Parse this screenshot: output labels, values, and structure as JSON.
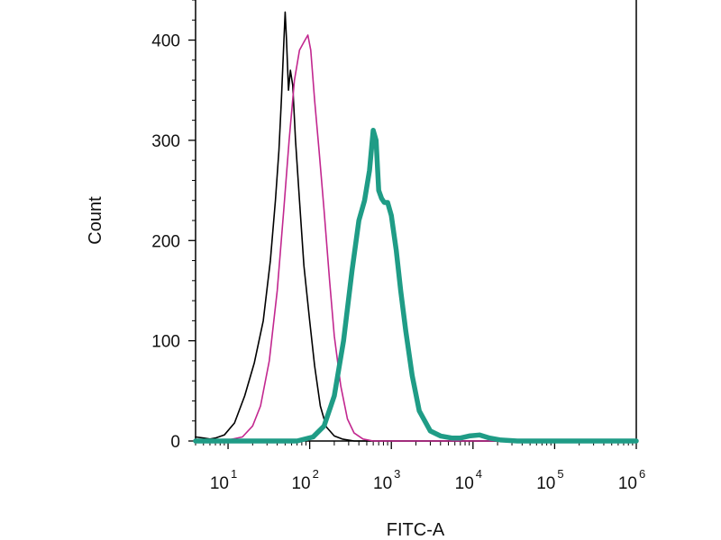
{
  "chart_data": {
    "type": "line",
    "xlabel": "FITC-A",
    "ylabel": "Count",
    "x_scale": "log",
    "xlim": [
      4,
      1000000
    ],
    "ylim": [
      0,
      440
    ],
    "x_ticks": [
      {
        "value": 10,
        "base": "10",
        "exp": "1"
      },
      {
        "value": 100,
        "base": "10",
        "exp": "2"
      },
      {
        "value": 1000,
        "base": "10",
        "exp": "3"
      },
      {
        "value": 10000,
        "base": "10",
        "exp": "4"
      },
      {
        "value": 100000,
        "base": "10",
        "exp": "5"
      },
      {
        "value": 1000000,
        "base": "10",
        "exp": "6"
      }
    ],
    "y_ticks": [
      {
        "value": 0,
        "label": "0"
      },
      {
        "value": 100,
        "label": "100"
      },
      {
        "value": 200,
        "label": "200"
      },
      {
        "value": 300,
        "label": "300"
      },
      {
        "value": 400,
        "label": "400"
      }
    ],
    "grid": false,
    "legend": "none",
    "series": [
      {
        "color": "#000000",
        "line_width": 1.6,
        "points": [
          [
            4,
            4
          ],
          [
            5,
            3
          ],
          [
            6,
            2
          ],
          [
            7,
            3
          ],
          [
            9,
            6
          ],
          [
            12,
            18
          ],
          [
            16,
            45
          ],
          [
            21,
            78
          ],
          [
            27,
            120
          ],
          [
            33,
            180
          ],
          [
            38,
            240
          ],
          [
            42,
            290
          ],
          [
            45,
            340
          ],
          [
            48,
            395
          ],
          [
            50,
            428
          ],
          [
            52,
            400
          ],
          [
            55,
            350
          ],
          [
            58,
            370
          ],
          [
            62,
            355
          ],
          [
            67,
            300
          ],
          [
            75,
            240
          ],
          [
            85,
            175
          ],
          [
            100,
            120
          ],
          [
            115,
            75
          ],
          [
            135,
            35
          ],
          [
            160,
            14
          ],
          [
            200,
            5
          ],
          [
            250,
            2
          ],
          [
            350,
            0
          ],
          [
            1000000,
            0
          ]
        ]
      },
      {
        "color": "#c2278f",
        "line_width": 1.6,
        "points": [
          [
            4,
            0
          ],
          [
            10,
            1
          ],
          [
            15,
            4
          ],
          [
            20,
            15
          ],
          [
            25,
            35
          ],
          [
            32,
            80
          ],
          [
            40,
            150
          ],
          [
            48,
            230
          ],
          [
            56,
            300
          ],
          [
            65,
            360
          ],
          [
            75,
            390
          ],
          [
            85,
            398
          ],
          [
            95,
            405
          ],
          [
            103,
            390
          ],
          [
            115,
            340
          ],
          [
            130,
            290
          ],
          [
            150,
            230
          ],
          [
            175,
            160
          ],
          [
            200,
            105
          ],
          [
            240,
            55
          ],
          [
            290,
            22
          ],
          [
            350,
            8
          ],
          [
            450,
            2
          ],
          [
            600,
            0
          ],
          [
            1000000,
            0
          ]
        ]
      },
      {
        "color": "#1f9c86",
        "line_width": 5.5,
        "points": [
          [
            4,
            0
          ],
          [
            70,
            0
          ],
          [
            110,
            4
          ],
          [
            150,
            15
          ],
          [
            200,
            45
          ],
          [
            260,
            100
          ],
          [
            330,
            170
          ],
          [
            400,
            220
          ],
          [
            470,
            240
          ],
          [
            540,
            270
          ],
          [
            600,
            310
          ],
          [
            650,
            300
          ],
          [
            700,
            250
          ],
          [
            760,
            242
          ],
          [
            820,
            238
          ],
          [
            900,
            238
          ],
          [
            1000,
            225
          ],
          [
            1150,
            190
          ],
          [
            1300,
            150
          ],
          [
            1500,
            110
          ],
          [
            1800,
            65
          ],
          [
            2200,
            30
          ],
          [
            3000,
            10
          ],
          [
            4000,
            5
          ],
          [
            5500,
            3
          ],
          [
            7000,
            3
          ],
          [
            9000,
            5
          ],
          [
            12000,
            6
          ],
          [
            16000,
            3
          ],
          [
            22000,
            1
          ],
          [
            35000,
            0
          ],
          [
            1000000,
            0
          ]
        ]
      }
    ]
  }
}
